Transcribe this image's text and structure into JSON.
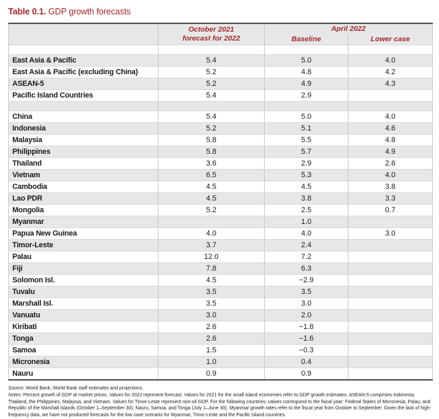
{
  "title": {
    "label": "Table 0.1.",
    "text": "GDP growth forecasts"
  },
  "table": {
    "header": {
      "october_line1": "October 2021",
      "october_line2": "forecast for 2022",
      "april": "April 2022",
      "baseline": "Baseline",
      "lower_case": "Lower case"
    },
    "rows": [
      {
        "spacer": true
      },
      {
        "label": "East Asia & Pacific",
        "oct": "5.4",
        "baseline": "5.0",
        "lower": "4.0"
      },
      {
        "label": "East Asia & Pacific (excluding China)",
        "oct": "5.2",
        "baseline": "4.8",
        "lower": "4.2"
      },
      {
        "label": "ASEAN-5",
        "oct": "5.2",
        "baseline": "4.9",
        "lower": "4.3"
      },
      {
        "label": "Pacific Island Countries",
        "oct": "5.4",
        "baseline": "2.9",
        "lower": ""
      },
      {
        "spacer": true
      },
      {
        "label": "China",
        "oct": "5.4",
        "baseline": "5.0",
        "lower": "4.0"
      },
      {
        "label": "Indonesia",
        "oct": "5.2",
        "baseline": "5.1",
        "lower": "4.6"
      },
      {
        "label": "Malaysia",
        "oct": "5.8",
        "baseline": "5.5",
        "lower": "4.8"
      },
      {
        "label": "Philippines",
        "oct": "5.8",
        "baseline": "5.7",
        "lower": "4.9"
      },
      {
        "label": "Thailand",
        "oct": "3.6",
        "baseline": "2.9",
        "lower": "2.6"
      },
      {
        "label": "Vietnam",
        "oct": "6.5",
        "baseline": "5.3",
        "lower": "4.0"
      },
      {
        "label": "Cambodia",
        "oct": "4.5",
        "baseline": "4.5",
        "lower": "3.8"
      },
      {
        "label": "Lao PDR",
        "oct": "4.5",
        "baseline": "3.8",
        "lower": "3.3"
      },
      {
        "label": "Mongolia",
        "oct": "5.2",
        "baseline": "2.5",
        "lower": "0.7"
      },
      {
        "label": "Myanmar",
        "oct": "",
        "baseline": "1.0",
        "lower": ""
      },
      {
        "label": "Papua New Guinea",
        "oct": "4.0",
        "baseline": "4.0",
        "lower": "3.0"
      },
      {
        "label": "Timor-Leste",
        "oct": "3.7",
        "baseline": "2.4",
        "lower": ""
      },
      {
        "label": "Palau",
        "oct": "12.0",
        "baseline": "7.2",
        "lower": ""
      },
      {
        "label": "Fiji",
        "oct": "7.8",
        "baseline": "6.3",
        "lower": ""
      },
      {
        "label": "Solomon Isl.",
        "oct": "4.5",
        "baseline": "−2.9",
        "lower": ""
      },
      {
        "label": "Tuvalu",
        "oct": "3.5",
        "baseline": "3.5",
        "lower": ""
      },
      {
        "label": "Marshall Isl.",
        "oct": "3.5",
        "baseline": "3.0",
        "lower": ""
      },
      {
        "label": "Vanuatu",
        "oct": "3.0",
        "baseline": "2.0",
        "lower": ""
      },
      {
        "label": "Kiribati",
        "oct": "2.6",
        "baseline": "−1.8",
        "lower": ""
      },
      {
        "label": "Tonga",
        "oct": "2.6",
        "baseline": "−1.6",
        "lower": ""
      },
      {
        "label": "Samoa",
        "oct": "1.5",
        "baseline": "−0.3",
        "lower": ""
      },
      {
        "label": "Micronesia",
        "oct": "1.0",
        "baseline": "0.4",
        "lower": ""
      },
      {
        "label": "Nauru",
        "oct": "0.9",
        "baseline": "0.9",
        "lower": ""
      }
    ]
  },
  "footer": {
    "source_label": "Source:",
    "source_text": " World Bank; World Bank staff estimates and projections.",
    "notes_label": "Notes:",
    "notes_text": " Percent growth of GDP at market prices. Values for 2022 represent forecast. Values for 2021 for the small island economies refer to GDP growth estimates. ASEAN-5 comprises Indonesia, Thailand, the Philippines, Malaysia, and Vietnam. Values for Timor-Leste represent non-oil GDP. For the following countries, values correspond to the fiscal year: Federal States of Micronesia, Palau, and Republic of the Marshall Islands (October 1–September 30); Nauru, Samoa, and Tonga (July 1–June 30). Myanmar growth rates refer to the fiscal year from October to September. Given the lack of high-frequency data, we have not produced forecasts for the low case scenario for Myanmar, Timor-Leste and the Pacific Island countries."
  },
  "colors": {
    "accent_red": "#a1282c",
    "row_shading": "#e7e7e7",
    "border_dark": "#4f4f4f",
    "border_light": "#c9c9c9"
  }
}
